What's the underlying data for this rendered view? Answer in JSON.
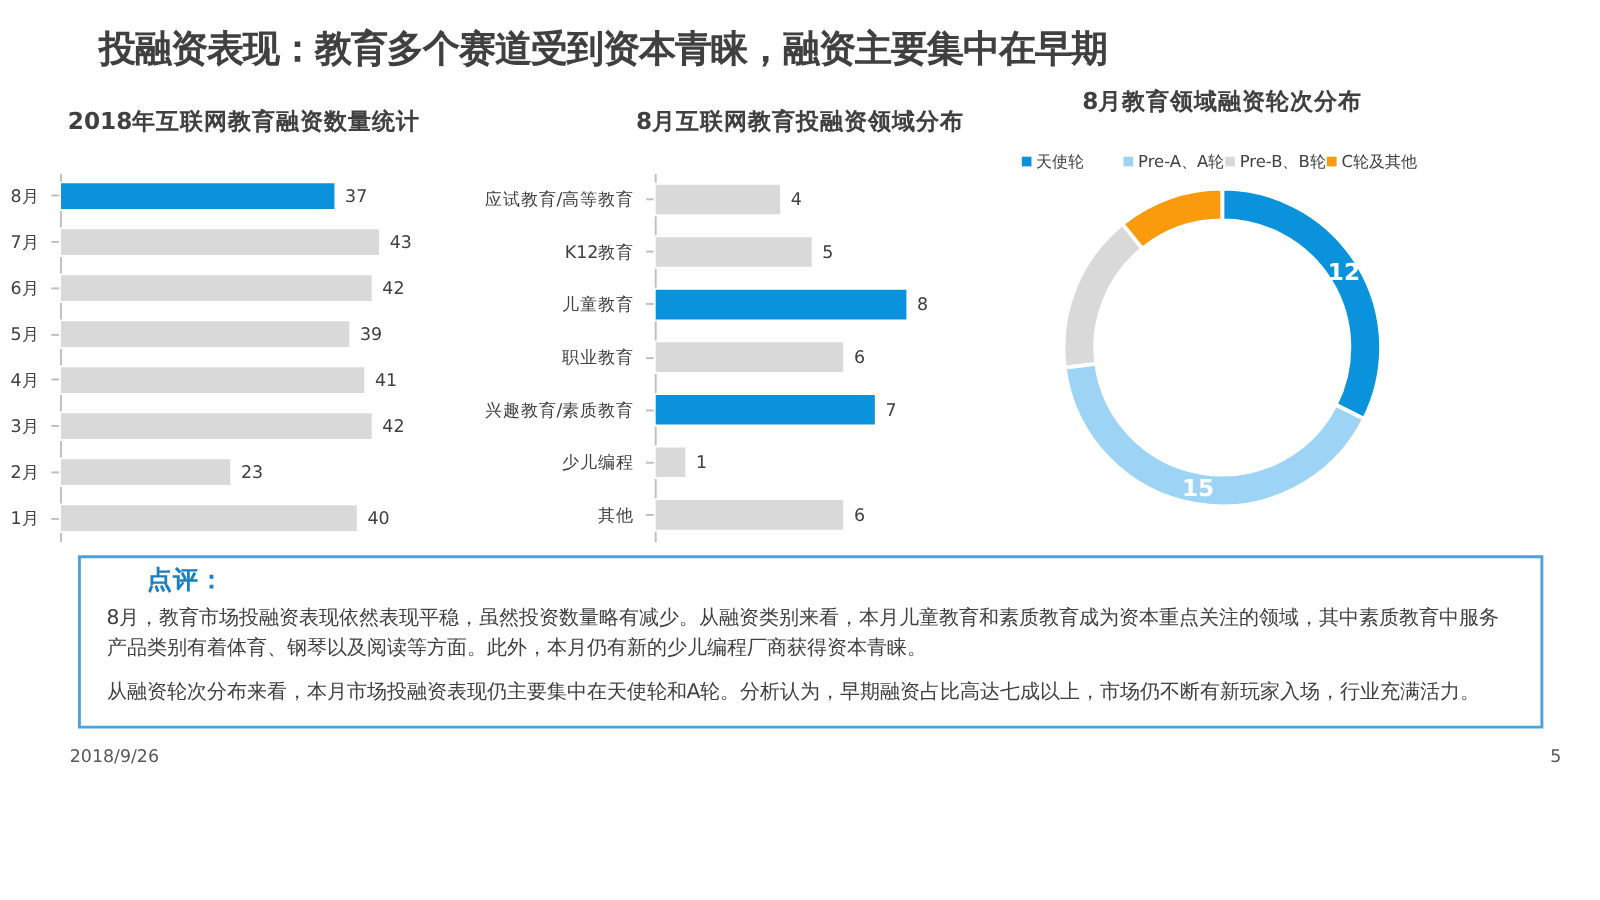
{
  "chart_data": [
    {
      "type": "other",
      "title": "投融资表现：教育多个赛道受到资本青睐，融资主要集中在早期"
    },
    {
      "type": "bar",
      "orientation": "horizontal",
      "title": "2018年互联网教育融资数量统计",
      "categories": [
        "8月",
        "7月",
        "6月",
        "5月",
        "4月",
        "3月",
        "2月",
        "1月"
      ],
      "values": [
        37,
        43,
        42,
        39,
        41,
        42,
        23,
        40
      ],
      "colors": [
        "#0a93dc",
        "#d9d9d9",
        "#d9d9d9",
        "#d9d9d9",
        "#d9d9d9",
        "#d9d9d9",
        "#d9d9d9",
        "#d9d9d9"
      ],
      "data_labels": true
    },
    {
      "type": "bar",
      "orientation": "horizontal",
      "title": "8月互联网教育投融资领域分布",
      "categories": [
        "应试教育/高等教育",
        "K12教育",
        "儿童教育",
        "职业教育",
        "兴趣教育/素质教育",
        "少儿编程",
        "其他"
      ],
      "values": [
        4,
        5,
        8,
        6,
        7,
        1,
        6
      ],
      "colors": [
        "#d9d9d9",
        "#d9d9d9",
        "#0a93dc",
        "#d9d9d9",
        "#0a93dc",
        "#d9d9d9",
        "#d9d9d9"
      ],
      "data_labels": true
    },
    {
      "type": "donut",
      "title": "8月教育领域融资轮次分布",
      "categories": [
        "天使轮",
        "Pre-A、A轮",
        "Pre-B、B轮",
        "C轮及其他"
      ],
      "values": [
        12,
        15,
        6,
        4
      ],
      "value_labels": [
        "12",
        "15",
        null,
        null
      ],
      "colors": [
        "#0a93dc",
        "#9dd3f5",
        "#d9d9d9",
        "#f99b0c"
      ],
      "legend": "top"
    },
    {
      "type": "other",
      "title": "点评：",
      "annotations": [
        "8月，教育市场投融资表现依然表现平稳，虽然投资数量略有减少。从融资类别来看，本月儿童教育和素质教育成为资本重点关注的领域，其中素质教育中服务产品类别有着体育、钢琴以及阅读等方面。此外，本月仍有新的少儿编程厂商获得资本青睐。",
        "从融资轮次分布来看，本月市场投融资表现仍主要集中在天使轮和A轮。分析认为，早期融资占比高达七成以上，市场仍不断有新玩家入场，行业充满活力。"
      ]
    },
    {
      "type": "other",
      "annotations": [
        "2018/9/26",
        "5"
      ]
    }
  ]
}
